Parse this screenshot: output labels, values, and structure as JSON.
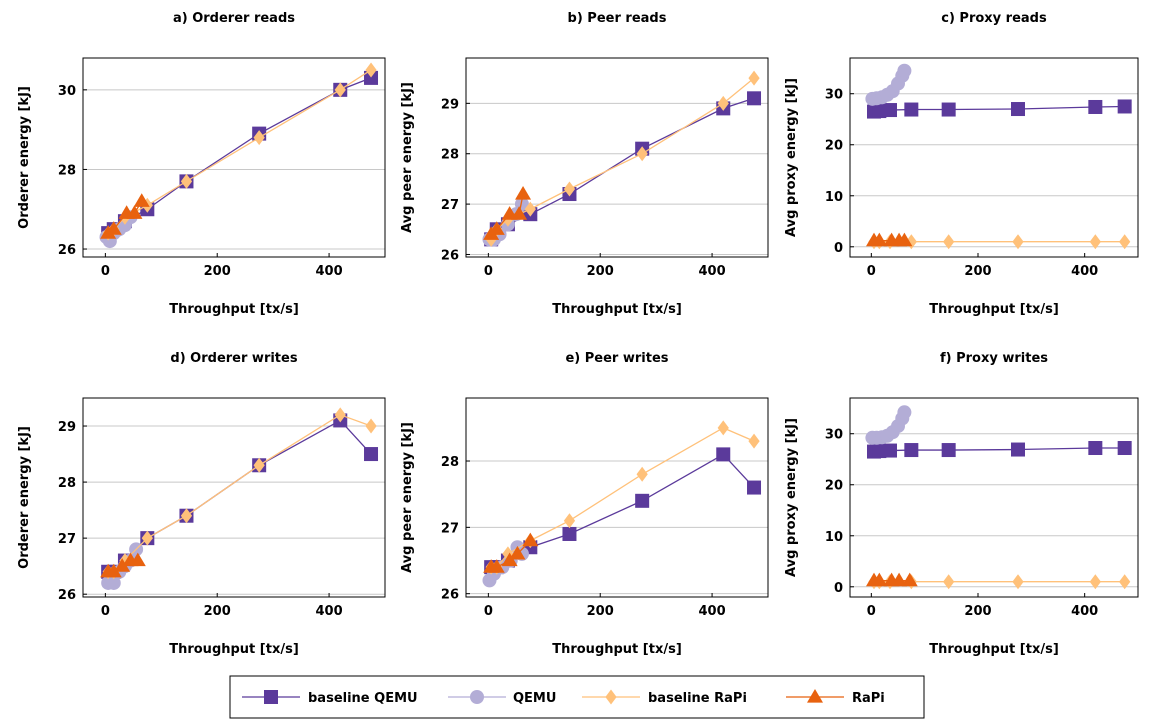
{
  "series_styles": {
    "baseline QEMU": {
      "color": "#5b3a9b",
      "marker": "square"
    },
    "QEMU": {
      "color": "#b3add6",
      "marker": "circle"
    },
    "baseline RaPi": {
      "color": "#ffc17a",
      "marker": "diamond"
    },
    "RaPi": {
      "color": "#e8620f",
      "marker": "triangle"
    }
  },
  "legend": [
    "baseline QEMU",
    "QEMU",
    "baseline RaPi",
    "RaPi"
  ],
  "chart_data": [
    {
      "type": "line",
      "title": "a) Orderer reads",
      "xlabel": "Throughput [tx/s]",
      "ylabel": "Orderer energy [kJ]",
      "xlim": [
        -40,
        500
      ],
      "ylim": [
        25.8,
        30.8
      ],
      "xticks": [
        0,
        200,
        400
      ],
      "yticks": [
        26,
        28,
        30
      ],
      "grid": "horizontal",
      "series": [
        {
          "name": "baseline QEMU",
          "x": [
            5,
            15,
            35,
            75,
            145,
            275,
            420,
            475
          ],
          "y": [
            26.4,
            26.5,
            26.7,
            27.0,
            27.7,
            28.9,
            30.0,
            30.3
          ]
        },
        {
          "name": "QEMU",
          "x": [
            2,
            8,
            15,
            25,
            35,
            45
          ],
          "y": [
            26.3,
            26.2,
            26.4,
            26.5,
            26.6,
            26.8
          ]
        },
        {
          "name": "baseline RaPi",
          "x": [
            5,
            15,
            35,
            75,
            145,
            275,
            420,
            475
          ],
          "y": [
            26.4,
            26.5,
            26.8,
            27.1,
            27.7,
            28.8,
            30.0,
            30.5
          ]
        },
        {
          "name": "RaPi",
          "x": [
            5,
            15,
            38,
            52,
            65
          ],
          "y": [
            26.4,
            26.5,
            26.9,
            26.9,
            27.2
          ]
        }
      ]
    },
    {
      "type": "line",
      "title": "b) Peer reads",
      "xlabel": "Throughput [tx/s]",
      "ylabel": "Avg peer energy [kJ]",
      "xlim": [
        -40,
        500
      ],
      "ylim": [
        25.95,
        29.9
      ],
      "xticks": [
        0,
        200,
        400
      ],
      "yticks": [
        26,
        27,
        28,
        29
      ],
      "grid": "horizontal",
      "series": [
        {
          "name": "baseline QEMU",
          "x": [
            5,
            15,
            35,
            75,
            145,
            275,
            420,
            475
          ],
          "y": [
            26.3,
            26.5,
            26.6,
            26.8,
            27.2,
            28.1,
            28.9,
            29.1
          ]
        },
        {
          "name": "QEMU",
          "x": [
            2,
            10,
            20,
            35,
            50,
            60
          ],
          "y": [
            26.3,
            26.3,
            26.4,
            26.6,
            26.8,
            27.0
          ]
        },
        {
          "name": "baseline RaPi",
          "x": [
            5,
            15,
            35,
            75,
            145,
            275,
            420,
            475
          ],
          "y": [
            26.3,
            26.5,
            26.7,
            26.9,
            27.3,
            28.0,
            29.0,
            29.5
          ]
        },
        {
          "name": "RaPi",
          "x": [
            5,
            15,
            38,
            55,
            62
          ],
          "y": [
            26.4,
            26.5,
            26.8,
            26.8,
            27.2
          ]
        }
      ]
    },
    {
      "type": "line",
      "title": "c) Proxy reads",
      "xlabel": "Throughput [tx/s]",
      "ylabel": "Avg proxy energy [kJ]",
      "xlim": [
        -40,
        500
      ],
      "ylim": [
        -2,
        37
      ],
      "xticks": [
        0,
        200,
        400
      ],
      "yticks": [
        0,
        10,
        20,
        30
      ],
      "grid": "horizontal",
      "series": [
        {
          "name": "baseline QEMU",
          "x": [
            5,
            15,
            35,
            75,
            145,
            275,
            420,
            475
          ],
          "y": [
            26.5,
            26.6,
            26.8,
            26.9,
            26.9,
            27.0,
            27.4,
            27.5
          ]
        },
        {
          "name": "QEMU",
          "x": [
            2,
            10,
            20,
            30,
            40,
            50,
            58,
            62
          ],
          "y": [
            29.0,
            29.1,
            29.3,
            29.8,
            30.5,
            32.0,
            33.5,
            34.5
          ]
        },
        {
          "name": "baseline RaPi",
          "x": [
            5,
            15,
            35,
            75,
            145,
            275,
            420,
            475
          ],
          "y": [
            1.0,
            1.0,
            1.0,
            1.0,
            1.0,
            1.0,
            1.0,
            1.0
          ]
        },
        {
          "name": "RaPi",
          "x": [
            5,
            15,
            38,
            52,
            62
          ],
          "y": [
            1.2,
            1.2,
            1.2,
            1.2,
            1.2
          ]
        }
      ]
    },
    {
      "type": "line",
      "title": "d) Orderer writes",
      "xlabel": "Throughput [tx/s]",
      "ylabel": "Orderer energy [kJ]",
      "xlim": [
        -40,
        500
      ],
      "ylim": [
        25.95,
        29.5
      ],
      "xticks": [
        0,
        200,
        400
      ],
      "yticks": [
        26,
        27,
        28,
        29
      ],
      "grid": "horizontal",
      "series": [
        {
          "name": "baseline QEMU",
          "x": [
            5,
            15,
            35,
            75,
            145,
            275,
            420,
            475
          ],
          "y": [
            26.4,
            26.4,
            26.6,
            27.0,
            27.4,
            28.3,
            29.1,
            28.5
          ]
        },
        {
          "name": "QEMU",
          "x": [
            5,
            15,
            25,
            35,
            45,
            55
          ],
          "y": [
            26.2,
            26.2,
            26.4,
            26.5,
            26.6,
            26.8
          ]
        },
        {
          "name": "baseline RaPi",
          "x": [
            5,
            15,
            35,
            75,
            145,
            275,
            420,
            475
          ],
          "y": [
            26.4,
            26.4,
            26.6,
            27.0,
            27.4,
            28.3,
            29.2,
            29.0
          ]
        },
        {
          "name": "RaPi",
          "x": [
            5,
            15,
            30,
            45,
            58
          ],
          "y": [
            26.4,
            26.4,
            26.5,
            26.6,
            26.6
          ]
        }
      ]
    },
    {
      "type": "line",
      "title": "e) Peer writes",
      "xlabel": "Throughput [tx/s]",
      "ylabel": "Avg peer energy [kJ]",
      "xlim": [
        -40,
        500
      ],
      "ylim": [
        25.95,
        28.95
      ],
      "xticks": [
        0,
        200,
        400
      ],
      "yticks": [
        26,
        27,
        28
      ],
      "grid": "horizontal",
      "series": [
        {
          "name": "baseline QEMU",
          "x": [
            5,
            15,
            35,
            75,
            145,
            275,
            420,
            475
          ],
          "y": [
            26.4,
            26.4,
            26.5,
            26.7,
            26.9,
            27.4,
            28.1,
            27.6
          ]
        },
        {
          "name": "QEMU",
          "x": [
            2,
            10,
            25,
            40,
            52,
            60
          ],
          "y": [
            26.2,
            26.3,
            26.4,
            26.5,
            26.7,
            26.6
          ]
        },
        {
          "name": "baseline RaPi",
          "x": [
            5,
            15,
            35,
            75,
            145,
            275,
            420,
            475
          ],
          "y": [
            26.4,
            26.4,
            26.6,
            26.8,
            27.1,
            27.8,
            28.5,
            28.3
          ]
        },
        {
          "name": "RaPi",
          "x": [
            5,
            15,
            38,
            52,
            75
          ],
          "y": [
            26.4,
            26.4,
            26.5,
            26.6,
            26.8
          ]
        }
      ]
    },
    {
      "type": "line",
      "title": "f) Proxy writes",
      "xlabel": "Throughput [tx/s]",
      "ylabel": "Avg proxy energy [kJ]",
      "xlim": [
        -40,
        500
      ],
      "ylim": [
        -2,
        37
      ],
      "xticks": [
        0,
        200,
        400
      ],
      "yticks": [
        0,
        10,
        20,
        30
      ],
      "grid": "horizontal",
      "series": [
        {
          "name": "baseline QEMU",
          "x": [
            5,
            15,
            35,
            75,
            145,
            275,
            420,
            475
          ],
          "y": [
            26.5,
            26.6,
            26.7,
            26.8,
            26.8,
            26.9,
            27.2,
            27.2
          ]
        },
        {
          "name": "QEMU",
          "x": [
            2,
            10,
            20,
            30,
            40,
            50,
            58,
            62
          ],
          "y": [
            29.2,
            29.2,
            29.3,
            29.6,
            30.3,
            31.5,
            33.0,
            34.2
          ]
        },
        {
          "name": "baseline RaPi",
          "x": [
            5,
            15,
            35,
            75,
            145,
            275,
            420,
            475
          ],
          "y": [
            1.0,
            1.0,
            1.0,
            1.0,
            1.0,
            1.0,
            1.0,
            1.0
          ]
        },
        {
          "name": "RaPi",
          "x": [
            5,
            15,
            38,
            52,
            72
          ],
          "y": [
            1.2,
            1.2,
            1.2,
            1.2,
            1.2
          ]
        }
      ]
    }
  ]
}
